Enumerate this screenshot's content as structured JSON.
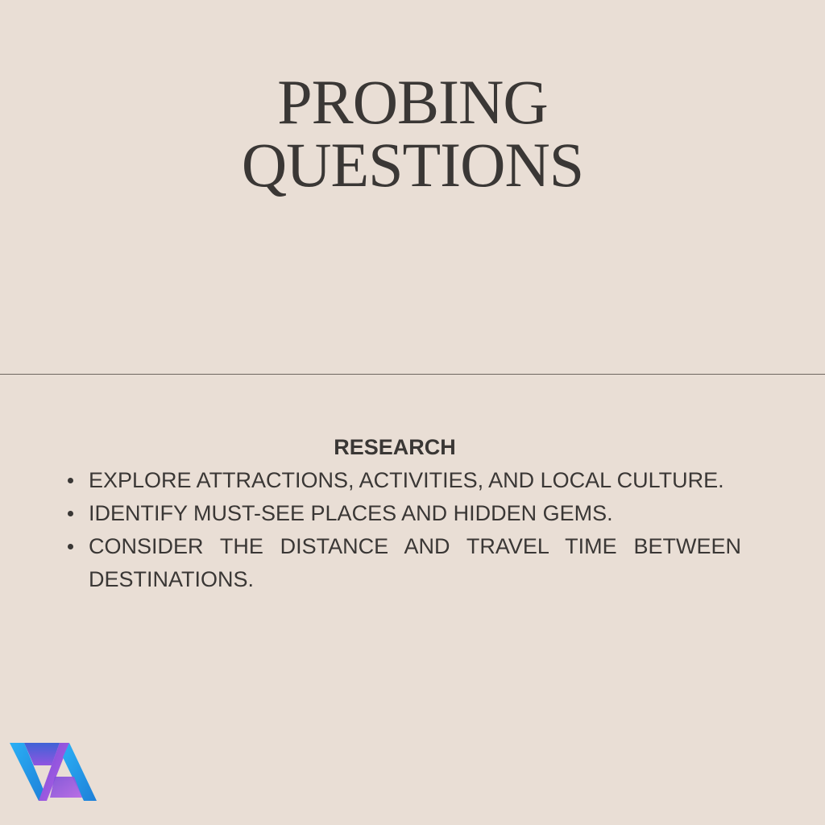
{
  "title": {
    "line1": "PROBING",
    "line2": "QUESTIONS"
  },
  "section": {
    "heading": "RESEARCH",
    "bullets": [
      "EXPLORE ATTRACTIONS, ACTIVITIES, AND LOCAL CULTURE.",
      "IDENTIFY MUST-SEE PLACES AND HIDDEN GEMS.",
      "CONSIDER THE DISTANCE AND TRAVEL TIME BETWEEN DESTINATIONS."
    ]
  },
  "colors": {
    "background": "#E9DED5",
    "text": "#3A3735",
    "divider": "#6E6660",
    "logo_blue": "#29A8F0",
    "logo_purple": "#A55BE0"
  },
  "logo": {
    "icon": "va-logo-icon"
  }
}
